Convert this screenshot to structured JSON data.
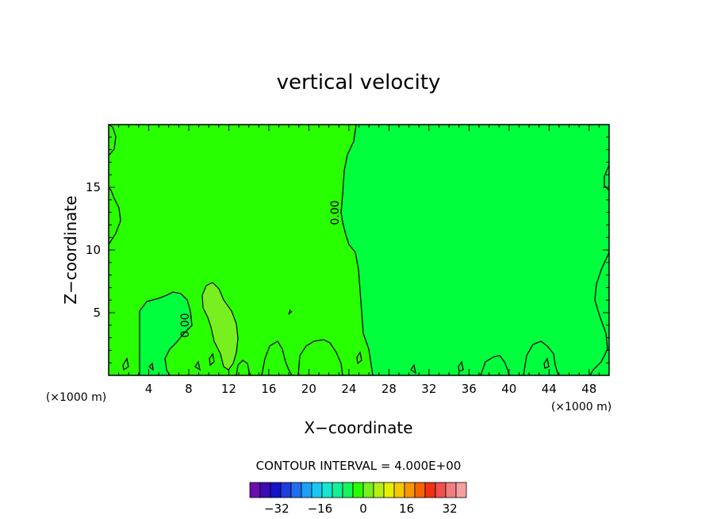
{
  "chart_data": {
    "type": "contour",
    "title": "vertical velocity",
    "xlabel": "X−coordinate",
    "ylabel": "Z−coordinate",
    "x_unit_left": "(×1000 m)",
    "x_unit_right": "(×1000 m)",
    "xlim": [
      0,
      50
    ],
    "ylim": [
      0,
      20
    ],
    "x_ticks": [
      4,
      8,
      12,
      16,
      20,
      24,
      28,
      32,
      36,
      40,
      44,
      48
    ],
    "y_ticks": [
      5,
      10,
      15
    ],
    "contour_label": "0.00",
    "contour_interval_text": "CONTOUR INTERVAL = 4.000E+00",
    "colorbar": {
      "ticks": [
        "−32",
        "−16",
        "0",
        "16",
        "32"
      ],
      "tick_values": [
        -32,
        -16,
        0,
        16,
        32
      ],
      "levels": [
        -40,
        -36,
        -32,
        -28,
        -24,
        -20,
        -16,
        -12,
        -8,
        -4,
        0,
        4,
        8,
        12,
        16,
        20,
        24,
        28,
        32,
        36,
        40
      ],
      "colors": [
        "#6a0dad",
        "#3a0ab4",
        "#1414c8",
        "#1f3cdc",
        "#1e6ef0",
        "#1ea0f5",
        "#19c8f0",
        "#14e6d2",
        "#14f096",
        "#14f55a",
        "#28ff00",
        "#78f020",
        "#b4f014",
        "#e6f000",
        "#f5c800",
        "#f59600",
        "#f56400",
        "#f03214",
        "#f05050",
        "#f08080",
        "#f5a0a0"
      ]
    },
    "regions": {
      "left_fill": "#28ff00",
      "right_fill": "#00ff3c",
      "positive_cell_fill": "#78f020"
    },
    "grid": false
  }
}
